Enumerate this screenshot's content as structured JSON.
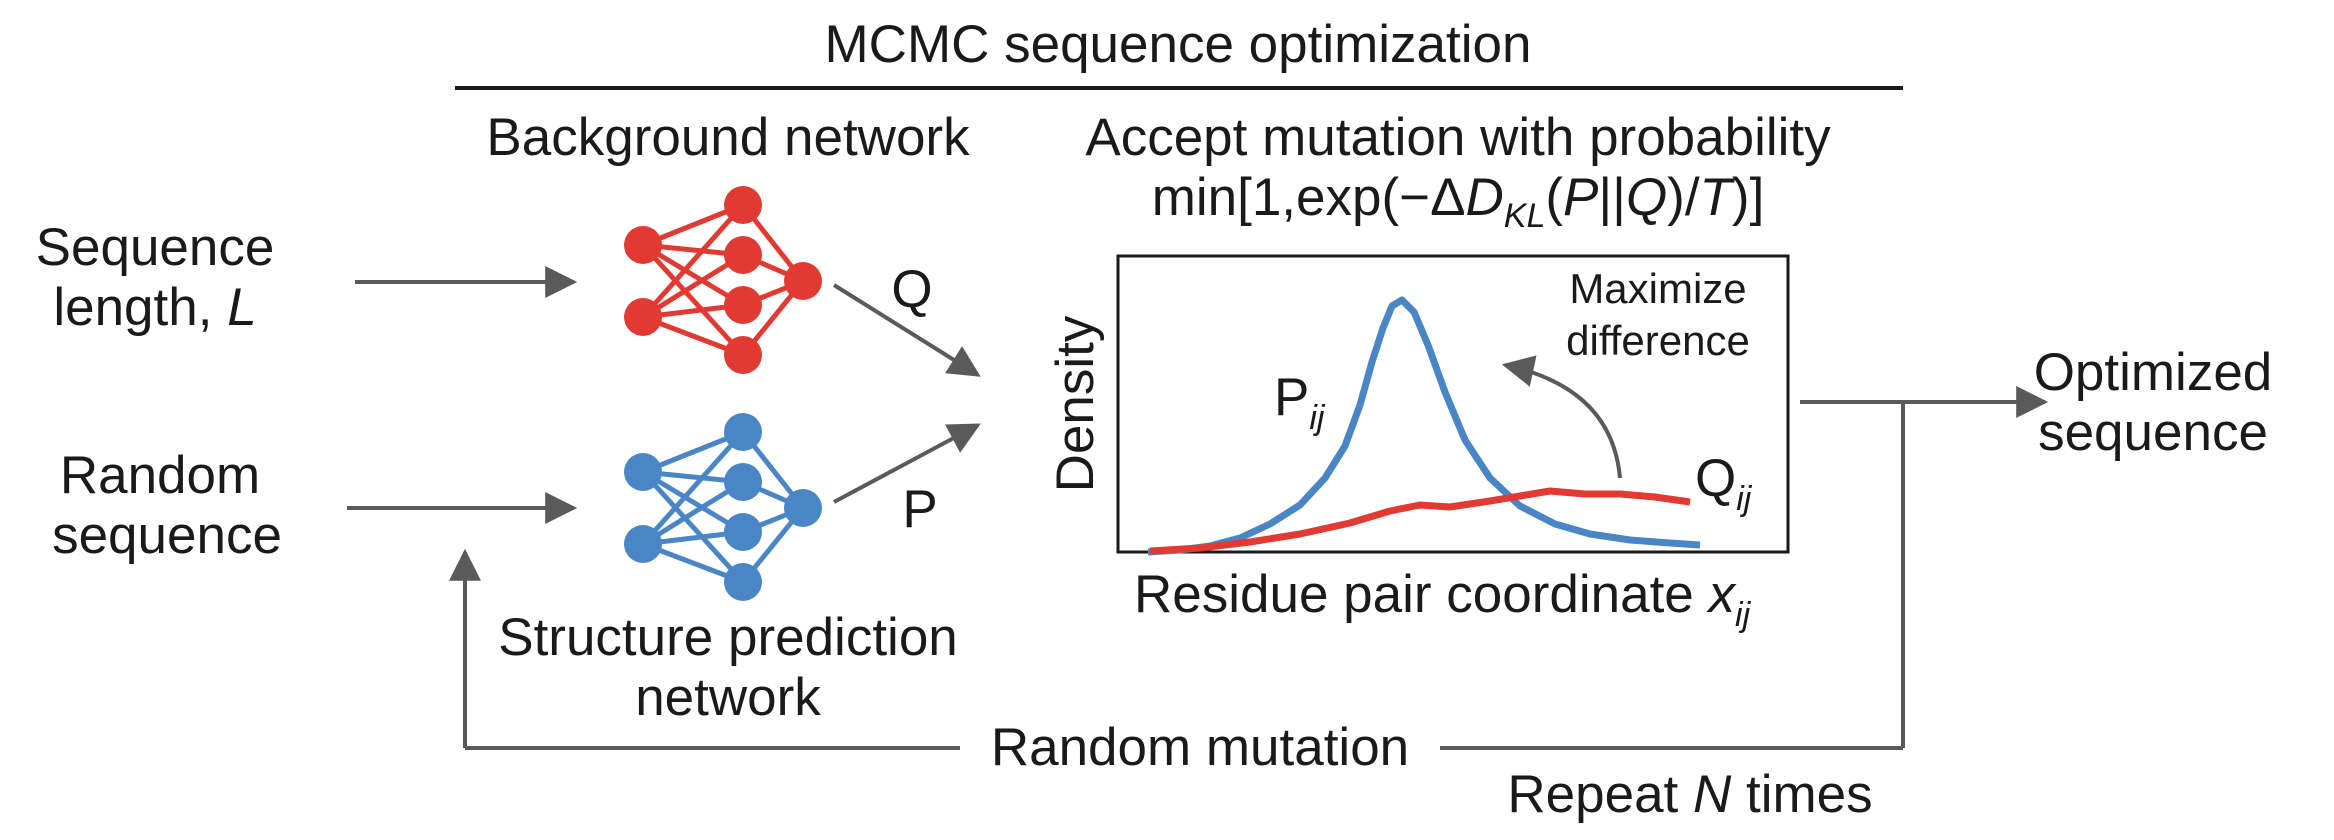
{
  "header": {
    "title": "MCMC sequence optimization"
  },
  "inputs": {
    "seq_len_line1": "Sequence",
    "seq_len_line2_pre": "length, ",
    "seq_len_var": "L",
    "random_line1": "Random",
    "random_line2": "sequence"
  },
  "networks": {
    "background_label": "Background network",
    "structure_label_line1": "Structure prediction",
    "structure_label_line2": "network",
    "background_output": "Q",
    "structure_output": "P",
    "background_color": "#e03a32",
    "structure_color": "#4a86c5"
  },
  "acceptance": {
    "line1": "Accept mutation with probability",
    "line2_pre": "min[1,exp(−Δ",
    "line2_D": "D",
    "line2_KL": "KL",
    "line2_paren_open": "(",
    "line2_P": "P",
    "line2_bars": "||",
    "line2_Q": "Q",
    "line2_slash": ")/",
    "line2_T": "T",
    "line2_close": ")]"
  },
  "plot": {
    "ylabel": "Density",
    "xlabel_pre": "Residue pair coordinate ",
    "xlabel_var": "x",
    "xlabel_sub": "ij",
    "annotation_line1": "Maximize",
    "annotation_line2": "difference",
    "p_label": "P",
    "p_sub": "ij",
    "q_label": "Q",
    "q_sub": "ij"
  },
  "output": {
    "line1": "Optimized",
    "line2": "sequence"
  },
  "loop": {
    "mutation_label": "Random mutation",
    "repeat_pre": "Repeat ",
    "repeat_var": "N",
    "repeat_post": " times"
  }
}
